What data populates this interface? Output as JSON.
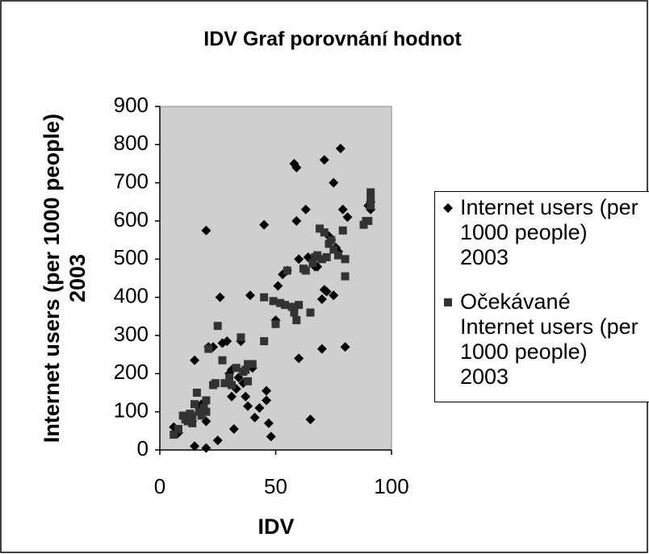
{
  "chart_data": {
    "type": "scatter",
    "title": "IDV Graf porovnání hodnot",
    "xlabel": "IDV",
    "ylabel": "Internet users (per 1000 people) 2003",
    "xlim": [
      0,
      100
    ],
    "xticks": [
      0,
      50,
      100
    ],
    "ylim": [
      0,
      900
    ],
    "yticks": [
      0,
      100,
      200,
      300,
      400,
      500,
      600,
      700,
      800,
      900
    ],
    "legend": "right",
    "series": [
      {
        "name": "Internet users (per 1000 people) 2003",
        "marker": "diamond",
        "color": "#000000",
        "x": [
          6,
          8,
          12,
          14,
          15,
          15,
          17,
          18,
          20,
          20,
          20,
          21,
          23,
          25,
          26,
          27,
          29,
          30,
          31,
          31,
          32,
          33,
          34,
          35,
          36,
          37,
          38,
          39,
          40,
          41,
          43,
          45,
          46,
          46,
          47,
          48,
          50,
          51,
          53,
          55,
          58,
          59,
          59,
          60,
          60,
          63,
          64,
          65,
          67,
          68,
          70,
          70,
          71,
          71,
          72,
          73,
          75,
          75,
          77,
          78,
          79,
          80,
          81,
          90,
          91,
          91,
          76,
          74
        ],
        "values": [
          60,
          45,
          90,
          75,
          10,
          235,
          110,
          120,
          75,
          5,
          575,
          270,
          270,
          25,
          400,
          280,
          285,
          200,
          140,
          210,
          55,
          160,
          190,
          285,
          175,
          140,
          115,
          405,
          215,
          85,
          110,
          590,
          155,
          130,
          70,
          35,
          340,
          430,
          460,
          470,
          750,
          740,
          600,
          500,
          240,
          630,
          505,
          80,
          480,
          480,
          395,
          265,
          760,
          420,
          415,
          560,
          700,
          405,
          520,
          790,
          630,
          270,
          610,
          640,
          650,
          630,
          530,
          550
        ]
      },
      {
        "name": "Očekávané Internet users (per 1000 people) 2003",
        "marker": "square",
        "color": "#333333",
        "x": [
          6,
          8,
          10,
          11,
          12,
          13,
          14,
          14,
          15,
          16,
          17,
          18,
          19,
          20,
          20,
          21,
          23,
          24,
          25,
          27,
          28,
          30,
          31,
          33,
          35,
          36,
          37,
          38,
          38,
          40,
          45,
          45,
          49,
          50,
          52,
          54,
          55,
          57,
          58,
          59,
          60,
          62,
          63,
          65,
          66,
          67,
          68,
          69,
          70,
          71,
          72,
          73,
          74,
          75,
          77,
          79,
          80,
          80,
          88,
          89,
          90,
          91,
          91,
          91
        ],
        "values": [
          40,
          55,
          90,
          80,
          75,
          95,
          90,
          70,
          120,
          150,
          100,
          90,
          110,
          100,
          130,
          265,
          170,
          175,
          325,
          235,
          175,
          190,
          170,
          215,
          295,
          205,
          210,
          180,
          225,
          225,
          285,
          400,
          390,
          330,
          385,
          380,
          470,
          375,
          360,
          340,
          380,
          475,
          470,
          360,
          490,
          505,
          510,
          580,
          500,
          570,
          505,
          540,
          550,
          525,
          510,
          575,
          500,
          455,
          590,
          600,
          600,
          675,
          660,
          640
        ]
      }
    ]
  }
}
